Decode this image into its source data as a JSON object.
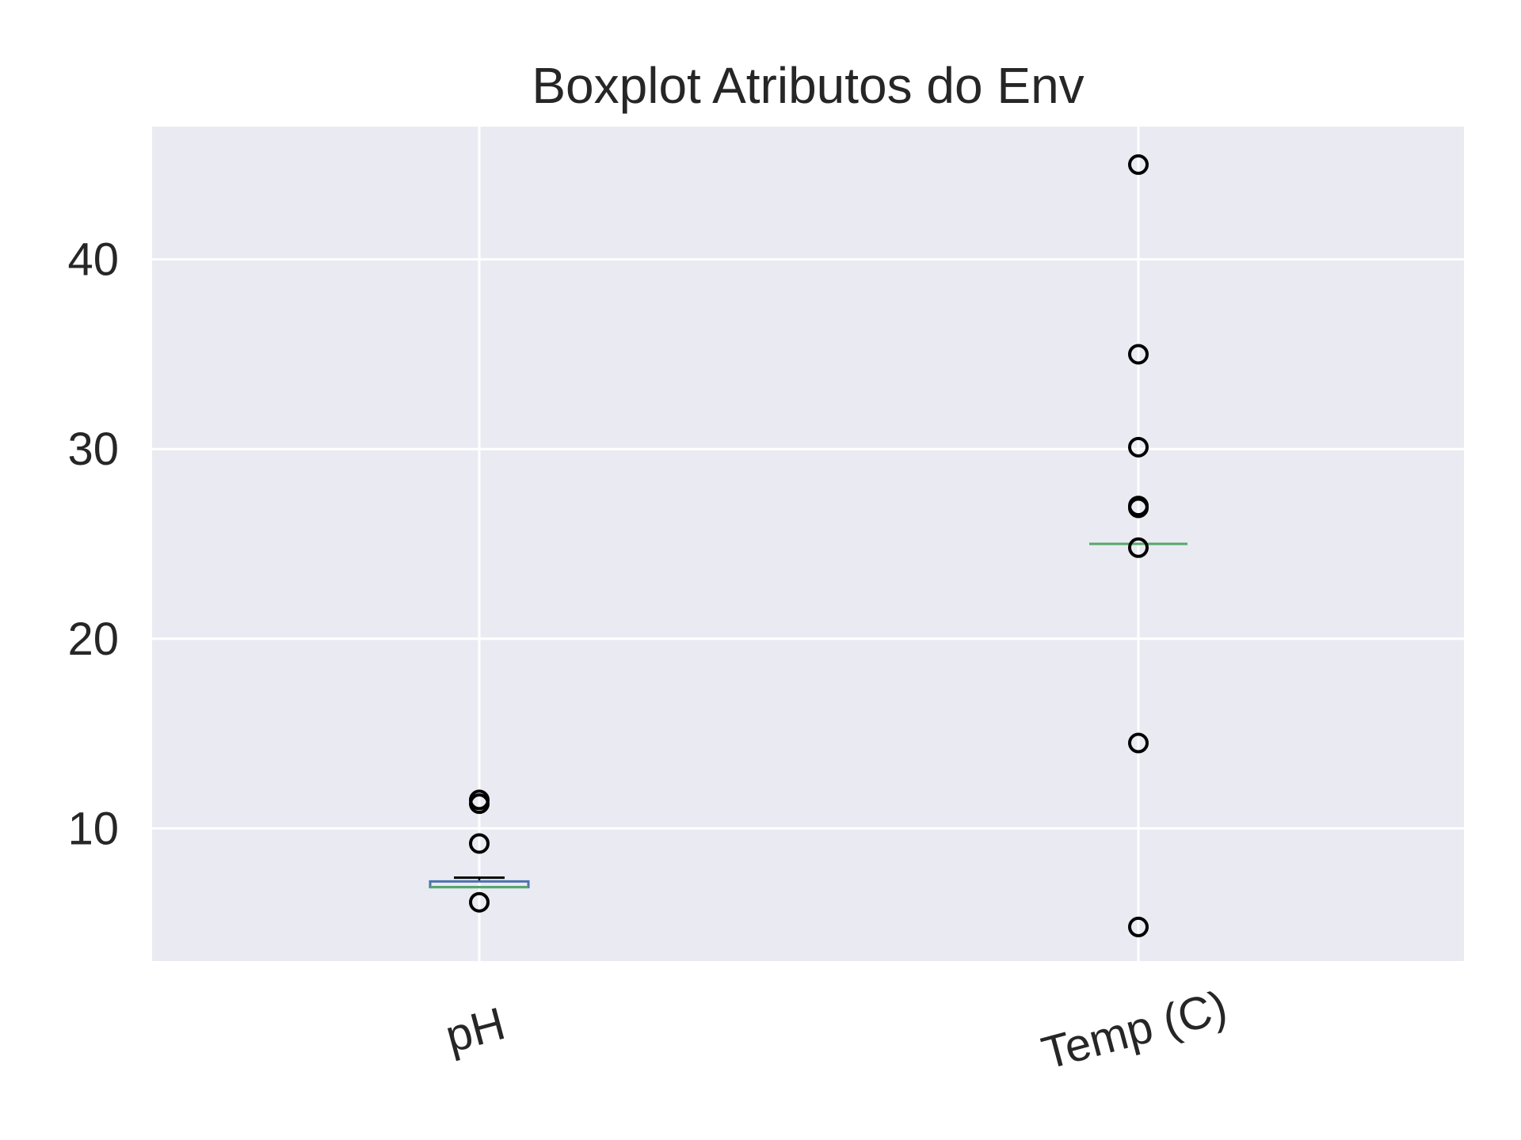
{
  "chart_data": {
    "type": "boxplot",
    "title": "Boxplot Atributos do Env",
    "xlabel": "",
    "ylabel": "",
    "ylim": [
      3,
      47
    ],
    "yticks": [
      10,
      20,
      30,
      40
    ],
    "grid": true,
    "categories": [
      "pH",
      "Temp (C)"
    ],
    "boxes": [
      {
        "category": "pH",
        "whisker_low": 6.9,
        "q1": 6.9,
        "median": 6.9,
        "q3": 7.2,
        "whisker_high": 7.4,
        "outliers": [
          6.1,
          9.2,
          11.3,
          11.5
        ]
      },
      {
        "category": "Temp (C)",
        "whisker_low": 25.0,
        "q1": 25.0,
        "median": 25.0,
        "q3": 25.0,
        "whisker_high": 25.0,
        "outliers": [
          4.8,
          14.5,
          24.8,
          26.9,
          27.0,
          30.1,
          35.0,
          45.0
        ]
      }
    ],
    "colors": {
      "background": "#eaeaf2",
      "grid": "#ffffff",
      "box": "#4c72b0",
      "median": "#55a868",
      "whisker": "#000000",
      "outlier_edge": "#000000",
      "text": "#262626"
    }
  }
}
